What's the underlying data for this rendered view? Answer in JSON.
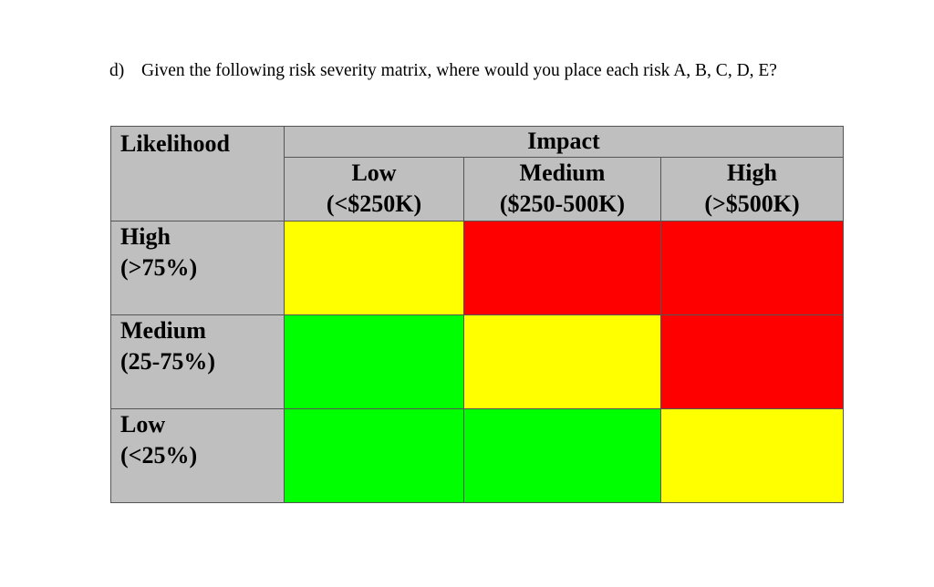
{
  "question": {
    "label": "d)",
    "text": "Given the following risk severity matrix, where would you place each risk A, B, C, D, E?"
  },
  "matrix": {
    "corner_label": "Likelihood",
    "impact_label": "Impact",
    "impact_columns": [
      {
        "name": "Low",
        "range": "(<$250K)"
      },
      {
        "name": "Medium",
        "range": "($250-500K)"
      },
      {
        "name": "High",
        "range": "(>$500K)"
      }
    ],
    "likelihood_rows": [
      {
        "name": "High",
        "range": "(>75%)",
        "levels": [
          "yellow",
          "red",
          "red"
        ]
      },
      {
        "name": "Medium",
        "range": "(25-75%)",
        "levels": [
          "green",
          "yellow",
          "red"
        ]
      },
      {
        "name": "Low",
        "range": "(<25%)",
        "levels": [
          "green",
          "green",
          "yellow"
        ]
      }
    ],
    "colors": {
      "yellow": "#ffff00",
      "red": "#ff0000",
      "green": "#00ff00",
      "header": "#bfbfbf"
    }
  }
}
